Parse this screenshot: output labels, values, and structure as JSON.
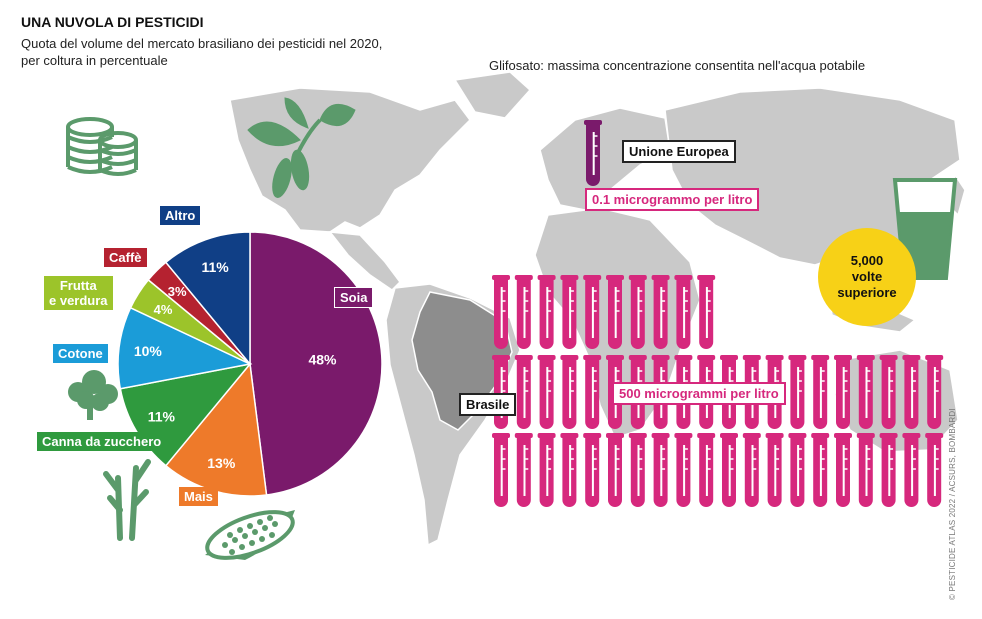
{
  "header": {
    "title": "UNA NUVOLA DI PESTICIDI",
    "subtitle_line1": "Quota del volume del mercato brasiliano dei pesticidi nel 2020,",
    "subtitle_line2": "per coltura in percentuale",
    "glifosato_title": "Glifosato: massima concentrazione consentita nell'acqua potabile"
  },
  "chart_data": [
    {
      "type": "pie",
      "title": "Quota del volume del mercato brasiliano dei pesticidi nel 2020, per coltura in percentuale",
      "slices": [
        {
          "name": "Soia",
          "value": 48,
          "label": "48%",
          "color": "#7a1a6b"
        },
        {
          "name": "Mais",
          "value": 13,
          "label": "13%",
          "color": "#ee7a2a"
        },
        {
          "name": "Canna da zucchero",
          "value": 11,
          "label": "11%",
          "color": "#2f9a3e"
        },
        {
          "name": "Cotone",
          "value": 10,
          "label": "10%",
          "color": "#1b9cd8"
        },
        {
          "name": "Frutta e verdura",
          "value": 4,
          "label": "4%",
          "color": "#9cc42a"
        },
        {
          "name": "Caffè",
          "value": 3,
          "label": "3%",
          "color": "#b52230"
        },
        {
          "name": "Altro",
          "value": 11,
          "label": "11%",
          "color": "#103f86"
        }
      ]
    },
    {
      "type": "pictogram",
      "title": "Glifosato: massima concentrazione consentita nell'acqua potabile",
      "series": [
        {
          "name": "Unione Europea",
          "value": 0.1,
          "unit": "microgrammo per litro",
          "tubes": 1
        },
        {
          "name": "Brasile",
          "value": 500,
          "unit": "microgrammi per litro",
          "tubes": 54
        }
      ],
      "ratio_label": "5,000 volte superiore"
    }
  ],
  "labels": {
    "soia": "Soia",
    "mais": "Mais",
    "canna": "Canna da zucchero",
    "cotone": "Cotone",
    "frutta_1": "Frutta",
    "frutta_2": "e verdura",
    "caffe": "Caffè",
    "altro": "Altro",
    "ue": "Unione Europea",
    "ue_value": "0.1 microgrammo per litro",
    "brasile": "Brasile",
    "br_value": "500 microgrammi per litro",
    "bubble_1": "5,000",
    "bubble_2": "volte",
    "bubble_3": "superiore"
  },
  "credit": "© PESTICIDE ATLAS 2022 / ACSURS, BOMBARDI",
  "colors": {
    "map": "#c8c8c8",
    "tube": "#d6287d",
    "tube_dark": "#7a1a6b",
    "icon_green": "#5b9a6b",
    "bubble": "#f7d117"
  },
  "icons": [
    "coins-icon",
    "soy-plant-icon",
    "cotton-icon",
    "sugarcane-icon",
    "corn-icon",
    "water-glass-icon",
    "test-tube-icon"
  ]
}
